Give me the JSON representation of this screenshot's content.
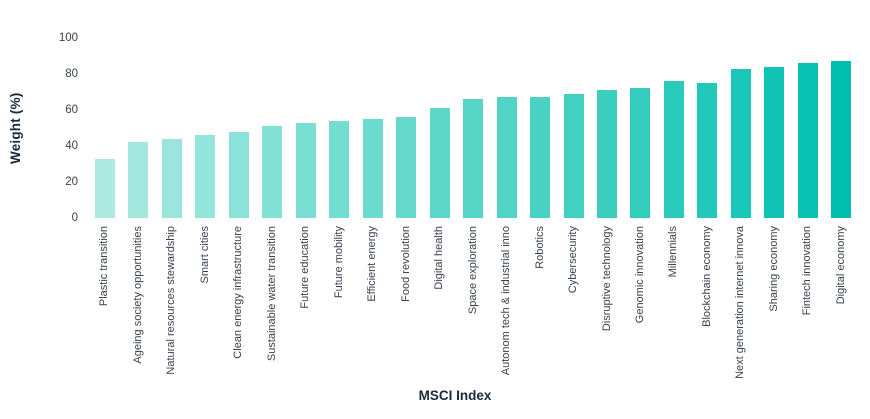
{
  "chart_data": {
    "type": "bar",
    "title": "",
    "xlabel": "MSCI Index",
    "ylabel": "Weight (%)",
    "ylim": [
      0,
      100
    ],
    "yticks": [
      0,
      20,
      40,
      60,
      80,
      100
    ],
    "grid": false,
    "legend": false,
    "categories": [
      "Plastic transition",
      "Ageing society opportunities",
      "Natural resources stewardship",
      "Smart cities",
      "Clean energy infrastructure",
      "Sustainable water transition",
      "Future education",
      "Future mobility",
      "Efficient energy",
      "Food revolution",
      "Digital health",
      "Space exploration",
      "Autonom tech & industrial inno",
      "Robotics",
      "Cybersecurity",
      "Disruptive technology",
      "Genomic innovation",
      "Millennials",
      "Blockchain economy",
      "Next generation internet innova",
      "Sharing economy",
      "Fintech innovation",
      "Digital economy"
    ],
    "values": [
      33,
      42,
      44,
      46,
      48,
      51,
      53,
      54,
      55,
      56,
      61,
      66,
      67,
      67,
      69,
      71,
      72,
      76,
      75,
      83,
      84,
      86,
      87
    ],
    "bar_color_stops": [
      "#ace9e1",
      "#6fdcd0",
      "#3ecfc0",
      "#00bfb0"
    ],
    "text_color_labels": "#39424e",
    "text_color_titles": "#1a2a3d"
  }
}
